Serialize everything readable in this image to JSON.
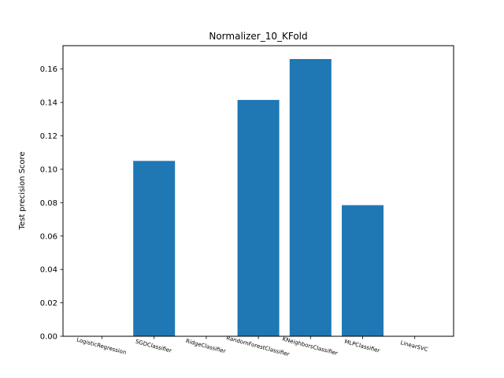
{
  "chart_data": {
    "type": "bar",
    "title": "Normalizer_10_KFold",
    "xlabel": "",
    "ylabel": "Test precision Score",
    "categories": [
      "LogisticRegression",
      "SGDClassifier",
      "RidgeClassifier",
      "RandomForestClassifier",
      "KNeighborsClassifier",
      "MLPClassifier",
      "LinearSVC"
    ],
    "values": [
      0.0,
      0.105,
      0.0,
      0.1415,
      0.166,
      0.0785,
      0.0
    ],
    "ylim": [
      0,
      0.174
    ],
    "yticks": [
      0.0,
      0.02,
      0.04,
      0.06,
      0.08,
      0.1,
      0.12,
      0.14,
      0.16
    ],
    "ytick_labels": [
      "0.00",
      "0.02",
      "0.04",
      "0.06",
      "0.08",
      "0.10",
      "0.12",
      "0.14",
      "0.16"
    ],
    "bar_color": "#1f77b4",
    "grid": false
  }
}
